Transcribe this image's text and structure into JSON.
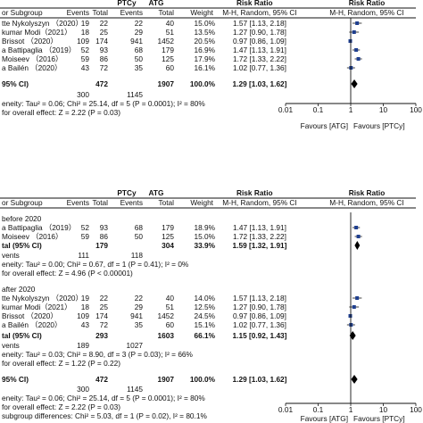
{
  "chart_data": [
    {
      "type": "forest",
      "header": {
        "group_ptcy": "PTCy",
        "group_atg": "ATG",
        "rr_col": "Risk Ratio",
        "rr_plot": "Risk Ratio",
        "method_col": "M-H, Random, 95% CI",
        "method_plot": "M-H, Random, 95% CI",
        "study": "or Subgroup",
        "events": "Events",
        "total": "Total",
        "events2": "Events",
        "total2": "Total",
        "weight": "Weight"
      },
      "studies": [
        {
          "name": "tte Nykolyszyn （2020）",
          "e1": "19",
          "n1": "22",
          "e2": "22",
          "n2": "40",
          "weight": "15.0%",
          "ci": "1.57 [1.13, 2.18]",
          "rr": 1.57,
          "lo": 1.13,
          "hi": 2.18
        },
        {
          "name": "kumar Modi（2021）",
          "e1": "18",
          "n1": "25",
          "e2": "29",
          "n2": "51",
          "weight": "13.5%",
          "ci": "1.27 [0.90, 1.78]",
          "rr": 1.27,
          "lo": 0.9,
          "hi": 1.78
        },
        {
          "name": "Brissot （2020）",
          "e1": "109",
          "n1": "174",
          "e2": "941",
          "n2": "1452",
          "weight": "20.5%",
          "ci": "0.97 [0.86, 1.09]",
          "rr": 0.97,
          "lo": 0.86,
          "hi": 1.09
        },
        {
          "name": "a Battipaglia （2019）",
          "e1": "52",
          "n1": "93",
          "e2": "68",
          "n2": "179",
          "weight": "16.9%",
          "ci": "1.47 [1.13, 1.91]",
          "rr": 1.47,
          "lo": 1.13,
          "hi": 1.91
        },
        {
          "name": "Moiseev （2016）",
          "e1": "59",
          "n1": "86",
          "e2": "50",
          "n2": "125",
          "weight": "17.9%",
          "ci": "1.72 [1.33, 2.22]",
          "rr": 1.72,
          "lo": 1.33,
          "hi": 2.22
        },
        {
          "name": "a Bailén （2020）",
          "e1": "43",
          "n1": "72",
          "e2": "35",
          "n2": "60",
          "weight": "16.1%",
          "ci": "1.02 [0.77, 1.36]",
          "rr": 1.02,
          "lo": 0.77,
          "hi": 1.36
        }
      ],
      "total": {
        "name": "95% CI)",
        "n1": "472",
        "n2": "1907",
        "weight": "100.0%",
        "ci": "1.29 [1.03, 1.62]",
        "rr": 1.29,
        "lo": 1.03,
        "hi": 1.62
      },
      "total_events": {
        "label": "",
        "e1": "300",
        "e2": "1145"
      },
      "heterogeneity": "eneity: Tau² = 0.06; Chi² = 25.14, df = 5 (P = 0.0001); I² = 80%",
      "overall": "for overall effect: Z = 2.22 (P = 0.03)",
      "axis": {
        "type": "log",
        "ticks": [
          0.01,
          0.1,
          1,
          10,
          100
        ],
        "tick_labels": [
          "0.01",
          "0.1",
          "1",
          "10",
          "100"
        ]
      },
      "favours_left": "Favours [ATG]",
      "favours_right": "Favours [PTCy]"
    },
    {
      "type": "forest",
      "header": {
        "group_ptcy": "PTCy",
        "group_atg": "ATG",
        "rr_col": "Risk Ratio",
        "rr_plot": "Risk Ratio",
        "method_col": "M-H, Random, 95% CI",
        "method_plot": "M-H, Random, 95% CI",
        "study": "or Subgroup",
        "events": "Events",
        "total": "Total",
        "events2": "Events",
        "total2": "Total",
        "weight": "Weight"
      },
      "subgroups": [
        {
          "title": "before 2020",
          "studies": [
            {
              "name": "a Battipaglia （2019）",
              "e1": "52",
              "n1": "93",
              "e2": "68",
              "n2": "179",
              "weight": "18.9%",
              "ci": "1.47 [1.13, 1.91]",
              "rr": 1.47,
              "lo": 1.13,
              "hi": 1.91
            },
            {
              "name": "Moiseev （2016）",
              "e1": "59",
              "n1": "86",
              "e2": "50",
              "n2": "125",
              "weight": "15.0%",
              "ci": "1.72 [1.33, 2.22]",
              "rr": 1.72,
              "lo": 1.33,
              "hi": 2.22
            }
          ],
          "subtotal": {
            "name": "tal (95% CI)",
            "n1": "179",
            "n2": "304",
            "weight": "33.9%",
            "ci": "1.59 [1.32, 1.91]",
            "rr": 1.59,
            "lo": 1.32,
            "hi": 1.91
          },
          "events": {
            "label": "vents",
            "e1": "111",
            "e2": "118"
          },
          "heterogeneity": "eneity: Tau² = 0.00; Chi² = 0.67, df = 1 (P = 0.41); I² = 0%",
          "overall": "for overall effect: Z = 4.96 (P < 0.00001)"
        },
        {
          "title": "after 2020",
          "studies": [
            {
              "name": "tte Nykolyszyn （2020）",
              "e1": "19",
              "n1": "22",
              "e2": "22",
              "n2": "40",
              "weight": "14.0%",
              "ci": "1.57 [1.13, 2.18]",
              "rr": 1.57,
              "lo": 1.13,
              "hi": 2.18
            },
            {
              "name": "kumar Modi（2021）",
              "e1": "18",
              "n1": "25",
              "e2": "29",
              "n2": "51",
              "weight": "12.5%",
              "ci": "1.27 [0.90, 1.78]",
              "rr": 1.27,
              "lo": 0.9,
              "hi": 1.78
            },
            {
              "name": "Brissot （2020）",
              "e1": "109",
              "n1": "174",
              "e2": "941",
              "n2": "1452",
              "weight": "24.5%",
              "ci": "0.97 [0.86, 1.09]",
              "rr": 0.97,
              "lo": 0.86,
              "hi": 1.09
            },
            {
              "name": "a Bailén （2020）",
              "e1": "43",
              "n1": "72",
              "e2": "35",
              "n2": "60",
              "weight": "15.1%",
              "ci": "1.02 [0.77, 1.36]",
              "rr": 1.02,
              "lo": 0.77,
              "hi": 1.36
            }
          ],
          "subtotal": {
            "name": "tal (95% CI)",
            "n1": "293",
            "n2": "1603",
            "weight": "66.1%",
            "ci": "1.15 [0.92, 1.43]",
            "rr": 1.15,
            "lo": 0.92,
            "hi": 1.43
          },
          "events": {
            "label": "vents",
            "e1": "189",
            "e2": "1027"
          },
          "heterogeneity": "eneity: Tau² = 0.03; Chi² = 8.90, df = 3 (P = 0.03); I² = 66%",
          "overall": "for overall effect: Z = 1.22 (P = 0.22)"
        }
      ],
      "total": {
        "name": "95% CI)",
        "n1": "472",
        "n2": "1907",
        "weight": "100.0%",
        "ci": "1.29 [1.03, 1.62]",
        "rr": 1.29,
        "lo": 1.03,
        "hi": 1.62
      },
      "total_events": {
        "label": "",
        "e1": "300",
        "e2": "1145"
      },
      "heterogeneity": "eneity: Tau² = 0.06; Chi² = 25.14, df = 5 (P = 0.0001); I² = 80%",
      "overall": "for overall effect: Z = 2.22 (P = 0.03)",
      "subgroup_diff": "subgroup differences: Chi² = 5.03, df = 1 (P = 0.02), I² = 80.1%",
      "axis": {
        "type": "log",
        "ticks": [
          0.01,
          0.1,
          1,
          10,
          100
        ],
        "tick_labels": [
          "0.01",
          "0.1",
          "1",
          "10",
          "100"
        ]
      },
      "favours_left": "Favours [ATG]",
      "favours_right": "Favours [PTCy]"
    }
  ],
  "colors": {
    "point": "#1f3f8f",
    "line": "#111111",
    "axis": "#111111",
    "header_rule": "#111111"
  }
}
